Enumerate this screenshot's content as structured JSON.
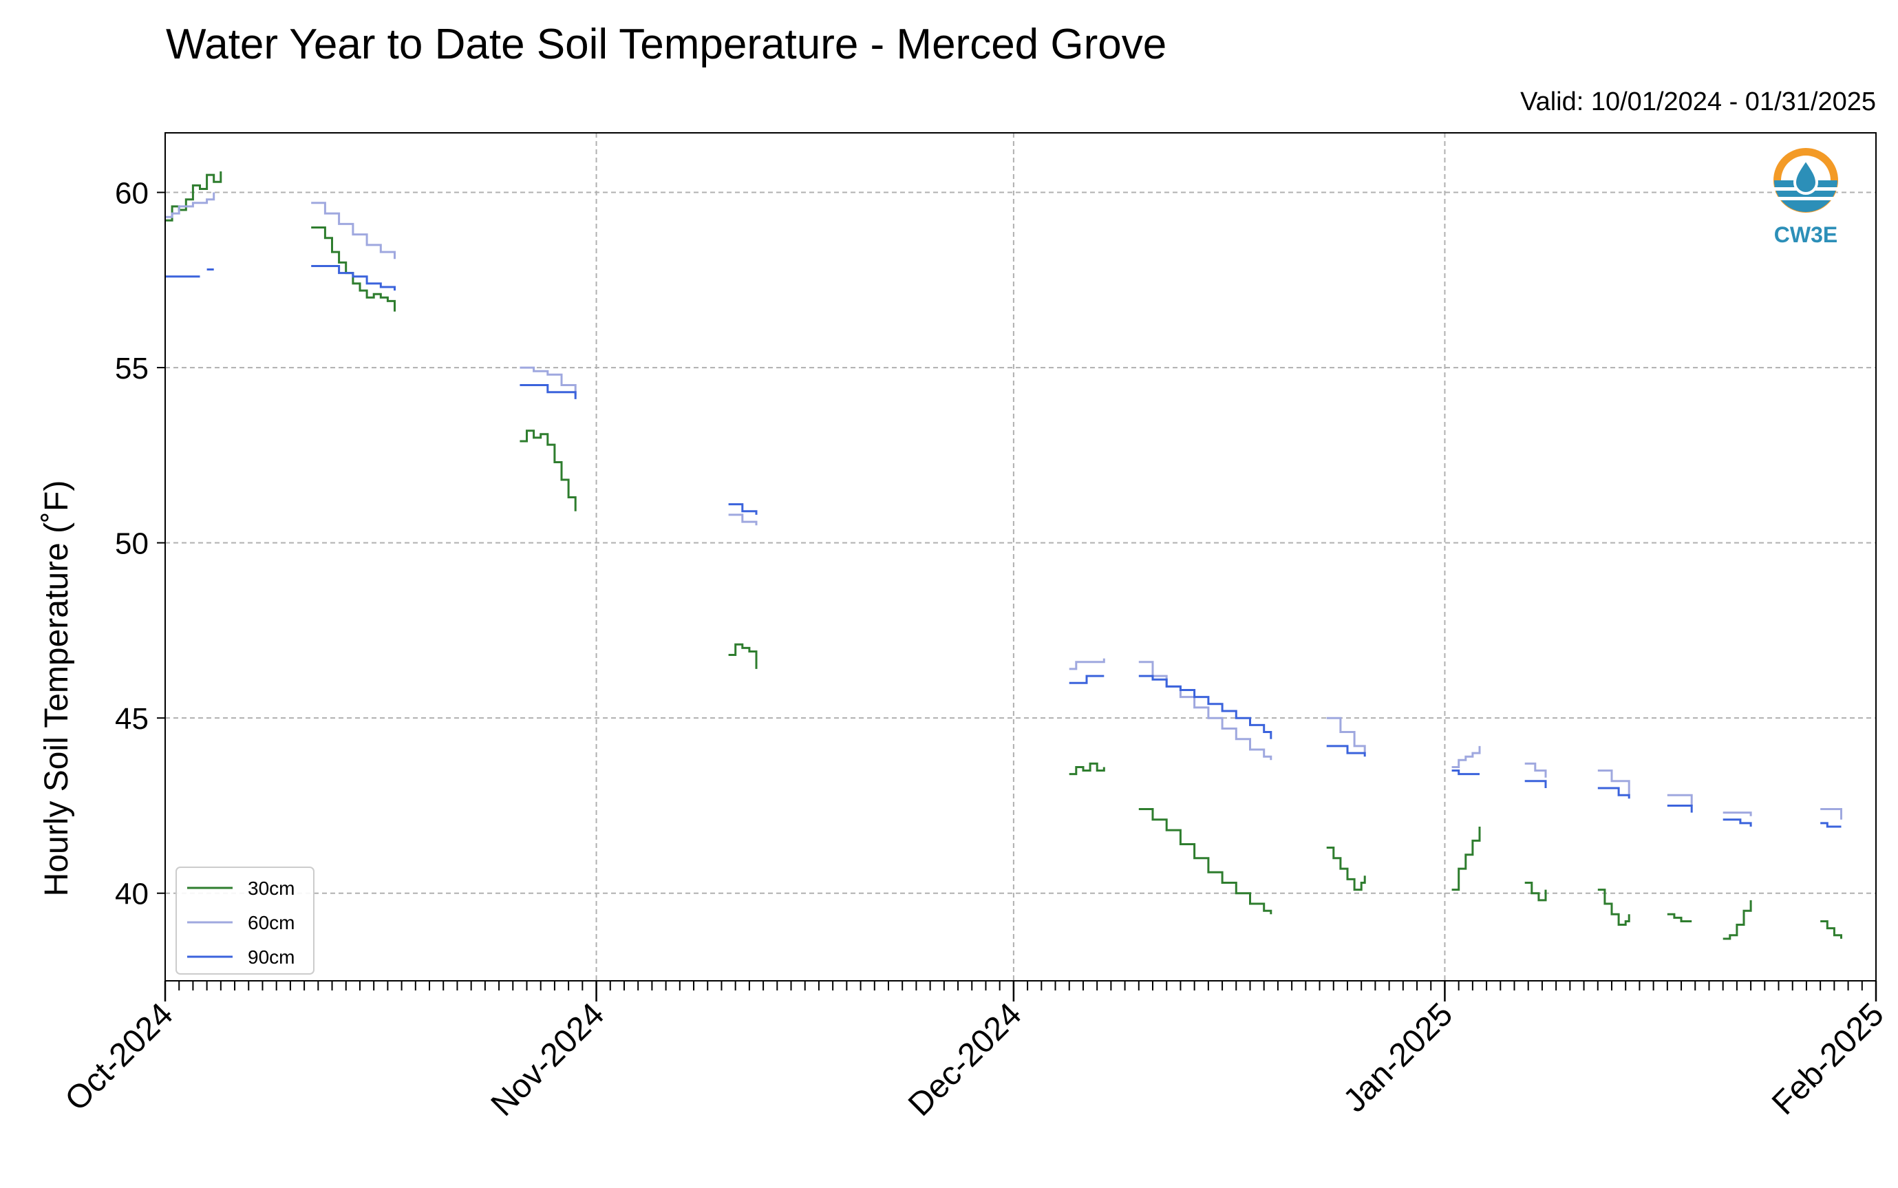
{
  "chart_data": {
    "type": "line",
    "title": "Water Year to Date Soil Temperature - Merced Grove",
    "subtitle": "Valid: 10/01/2024 - 01/31/2025",
    "ylabel": "Hourly Soil Temperature (˚F)",
    "xlabel": "",
    "x_start": "2024-10-01",
    "x_end": "2025-02-01",
    "ylim": [
      37.5,
      61.7
    ],
    "yticks": [
      40,
      45,
      50,
      55,
      60
    ],
    "xticks": [
      {
        "date": "2024-10-01",
        "label": "Oct-2024"
      },
      {
        "date": "2024-11-01",
        "label": "Nov-2024"
      },
      {
        "date": "2024-12-01",
        "label": "Dec-2024"
      },
      {
        "date": "2025-01-01",
        "label": "Jan-2025"
      },
      {
        "date": "2025-02-01",
        "label": "Feb-2025"
      }
    ],
    "grid": true,
    "legend_position": "lower-left",
    "logo_text": "CW3E",
    "series": [
      {
        "name": "30cm",
        "color": "#2e7d2e",
        "segments": [
          [
            [
              "2024-10-01T00",
              59.2
            ],
            [
              "2024-10-01T12",
              59.6
            ],
            [
              "2024-10-02T00",
              59.5
            ],
            [
              "2024-10-02T12",
              59.8
            ],
            [
              "2024-10-03T00",
              60.2
            ],
            [
              "2024-10-03T12",
              60.1
            ],
            [
              "2024-10-04T00",
              60.5
            ],
            [
              "2024-10-04T12",
              60.3
            ],
            [
              "2024-10-05T00",
              60.6
            ]
          ],
          [
            [
              "2024-10-11T12",
              59.0
            ],
            [
              "2024-10-12T12",
              58.7
            ],
            [
              "2024-10-13T00",
              58.3
            ],
            [
              "2024-10-13T12",
              58.0
            ],
            [
              "2024-10-14T00",
              57.7
            ],
            [
              "2024-10-14T12",
              57.4
            ],
            [
              "2024-10-15T00",
              57.2
            ],
            [
              "2024-10-15T12",
              57.0
            ],
            [
              "2024-10-16T00",
              57.1
            ],
            [
              "2024-10-16T12",
              57.0
            ],
            [
              "2024-10-17T00",
              56.9
            ],
            [
              "2024-10-17T12",
              56.6
            ]
          ],
          [
            [
              "2024-10-26T12",
              52.9
            ],
            [
              "2024-10-27T00",
              53.2
            ],
            [
              "2024-10-27T12",
              53.0
            ],
            [
              "2024-10-28T00",
              53.1
            ],
            [
              "2024-10-28T12",
              52.8
            ],
            [
              "2024-10-29T00",
              52.3
            ],
            [
              "2024-10-29T12",
              51.8
            ],
            [
              "2024-10-30T00",
              51.3
            ],
            [
              "2024-10-30T12",
              50.9
            ]
          ],
          [
            [
              "2024-11-10T12",
              46.8
            ],
            [
              "2024-11-11T00",
              47.1
            ],
            [
              "2024-11-11T12",
              47.0
            ],
            [
              "2024-11-12T00",
              46.9
            ],
            [
              "2024-11-12T12",
              46.4
            ]
          ],
          [
            [
              "2024-12-05T00",
              43.4
            ],
            [
              "2024-12-05T12",
              43.6
            ],
            [
              "2024-12-06T00",
              43.5
            ],
            [
              "2024-12-06T12",
              43.7
            ],
            [
              "2024-12-07T00",
              43.5
            ],
            [
              "2024-12-07T12",
              43.6
            ]
          ],
          [
            [
              "2024-12-10T00",
              42.4
            ],
            [
              "2024-12-11T00",
              42.1
            ],
            [
              "2024-12-12T00",
              41.8
            ],
            [
              "2024-12-13T00",
              41.4
            ],
            [
              "2024-12-14T00",
              41.0
            ],
            [
              "2024-12-15T00",
              40.6
            ],
            [
              "2024-12-16T00",
              40.3
            ],
            [
              "2024-12-17T00",
              40.0
            ],
            [
              "2024-12-18T00",
              39.7
            ],
            [
              "2024-12-19T00",
              39.5
            ],
            [
              "2024-12-19T12",
              39.4
            ]
          ],
          [
            [
              "2024-12-23T12",
              41.3
            ],
            [
              "2024-12-24T00",
              41.0
            ],
            [
              "2024-12-24T12",
              40.7
            ],
            [
              "2024-12-25T00",
              40.4
            ],
            [
              "2024-12-25T12",
              40.1
            ],
            [
              "2024-12-26T00",
              40.3
            ],
            [
              "2024-12-26T06",
              40.5
            ]
          ],
          [
            [
              "2025-01-01T12",
              40.1
            ],
            [
              "2025-01-02T00",
              40.7
            ],
            [
              "2025-01-02T12",
              41.1
            ],
            [
              "2025-01-03T00",
              41.5
            ],
            [
              "2025-01-03T12",
              41.9
            ]
          ],
          [
            [
              "2025-01-06T18",
              40.3
            ],
            [
              "2025-01-07T06",
              40.0
            ],
            [
              "2025-01-07T18",
              39.8
            ],
            [
              "2025-01-08T06",
              40.1
            ]
          ],
          [
            [
              "2025-01-12T00",
              40.1
            ],
            [
              "2025-01-12T12",
              39.7
            ],
            [
              "2025-01-13T00",
              39.4
            ],
            [
              "2025-01-13T12",
              39.1
            ],
            [
              "2025-01-14T00",
              39.2
            ],
            [
              "2025-01-14T06",
              39.4
            ]
          ],
          [
            [
              "2025-01-17T00",
              39.4
            ],
            [
              "2025-01-17T12",
              39.3
            ],
            [
              "2025-01-18T00",
              39.2
            ],
            [
              "2025-01-18T18",
              39.2
            ]
          ],
          [
            [
              "2025-01-21T00",
              38.7
            ],
            [
              "2025-01-21T12",
              38.8
            ],
            [
              "2025-01-22T00",
              39.1
            ],
            [
              "2025-01-22T12",
              39.5
            ],
            [
              "2025-01-23T00",
              39.8
            ]
          ],
          [
            [
              "2025-01-28T00",
              39.2
            ],
            [
              "2025-01-28T12",
              39.0
            ],
            [
              "2025-01-29T00",
              38.8
            ],
            [
              "2025-01-29T12",
              38.7
            ]
          ]
        ]
      },
      {
        "name": "60cm",
        "color": "#9fa8df",
        "segments": [
          [
            [
              "2024-10-01T00",
              59.3
            ],
            [
              "2024-10-01T12",
              59.4
            ],
            [
              "2024-10-02T00",
              59.6
            ],
            [
              "2024-10-03T00",
              59.7
            ],
            [
              "2024-10-04T00",
              59.8
            ],
            [
              "2024-10-04T12",
              60.0
            ]
          ],
          [
            [
              "2024-10-11T12",
              59.7
            ],
            [
              "2024-10-12T12",
              59.4
            ],
            [
              "2024-10-13T12",
              59.1
            ],
            [
              "2024-10-14T12",
              58.8
            ],
            [
              "2024-10-15T12",
              58.5
            ],
            [
              "2024-10-16T12",
              58.3
            ],
            [
              "2024-10-17T12",
              58.1
            ]
          ],
          [
            [
              "2024-10-26T12",
              55.0
            ],
            [
              "2024-10-27T12",
              54.9
            ],
            [
              "2024-10-28T12",
              54.8
            ],
            [
              "2024-10-29T12",
              54.5
            ],
            [
              "2024-10-30T12",
              54.2
            ]
          ],
          [
            [
              "2024-11-10T12",
              50.8
            ],
            [
              "2024-11-11T12",
              50.6
            ],
            [
              "2024-11-12T12",
              50.5
            ]
          ],
          [
            [
              "2024-12-05T00",
              46.4
            ],
            [
              "2024-12-05T12",
              46.6
            ],
            [
              "2024-12-06T12",
              46.6
            ],
            [
              "2024-12-07T12",
              46.7
            ]
          ],
          [
            [
              "2024-12-10T00",
              46.6
            ],
            [
              "2024-12-11T00",
              46.2
            ],
            [
              "2024-12-12T00",
              45.9
            ],
            [
              "2024-12-13T00",
              45.6
            ],
            [
              "2024-12-14T00",
              45.3
            ],
            [
              "2024-12-15T00",
              45.0
            ],
            [
              "2024-12-16T00",
              44.7
            ],
            [
              "2024-12-17T00",
              44.4
            ],
            [
              "2024-12-18T00",
              44.1
            ],
            [
              "2024-12-19T00",
              43.9
            ],
            [
              "2024-12-19T12",
              43.8
            ]
          ],
          [
            [
              "2024-12-23T12",
              45.0
            ],
            [
              "2024-12-24T12",
              44.6
            ],
            [
              "2024-12-25T12",
              44.2
            ],
            [
              "2024-12-26T06",
              44.0
            ]
          ],
          [
            [
              "2025-01-01T12",
              43.6
            ],
            [
              "2025-01-02T00",
              43.8
            ],
            [
              "2025-01-02T12",
              43.9
            ],
            [
              "2025-01-03T00",
              44.0
            ],
            [
              "2025-01-03T12",
              44.2
            ]
          ],
          [
            [
              "2025-01-06T18",
              43.7
            ],
            [
              "2025-01-07T12",
              43.5
            ],
            [
              "2025-01-08T06",
              43.3
            ]
          ],
          [
            [
              "2025-01-12T00",
              43.5
            ],
            [
              "2025-01-13T00",
              43.2
            ],
            [
              "2025-01-14T06",
              42.8
            ]
          ],
          [
            [
              "2025-01-17T00",
              42.8
            ],
            [
              "2025-01-18T18",
              42.5
            ]
          ],
          [
            [
              "2025-01-21T00",
              42.3
            ],
            [
              "2025-01-23T00",
              42.2
            ]
          ],
          [
            [
              "2025-01-28T00",
              42.4
            ],
            [
              "2025-01-29T12",
              42.1
            ]
          ]
        ]
      },
      {
        "name": "90cm",
        "color": "#3b63dc",
        "segments": [
          [
            [
              "2024-10-01T00",
              57.6
            ],
            [
              "2024-10-03T12",
              57.6
            ]
          ],
          [
            [
              "2024-10-04T00",
              57.8
            ],
            [
              "2024-10-04T12",
              57.8
            ]
          ],
          [
            [
              "2024-10-11T12",
              57.9
            ],
            [
              "2024-10-13T00",
              57.9
            ],
            [
              "2024-10-13T12",
              57.7
            ],
            [
              "2024-10-14T12",
              57.6
            ],
            [
              "2024-10-15T12",
              57.4
            ],
            [
              "2024-10-16T12",
              57.3
            ],
            [
              "2024-10-17T12",
              57.2
            ]
          ],
          [
            [
              "2024-10-26T12",
              54.5
            ],
            [
              "2024-10-28T00",
              54.5
            ],
            [
              "2024-10-28T12",
              54.3
            ],
            [
              "2024-10-30T00",
              54.3
            ],
            [
              "2024-10-30T12",
              54.1
            ]
          ],
          [
            [
              "2024-11-10T12",
              51.1
            ],
            [
              "2024-11-11T12",
              50.9
            ],
            [
              "2024-11-12T12",
              50.8
            ]
          ],
          [
            [
              "2024-12-05T00",
              46.0
            ],
            [
              "2024-12-06T00",
              46.0
            ],
            [
              "2024-12-06T06",
              46.2
            ],
            [
              "2024-12-07T12",
              46.2
            ]
          ],
          [
            [
              "2024-12-10T00",
              46.2
            ],
            [
              "2024-12-11T00",
              46.1
            ],
            [
              "2024-12-12T00",
              45.9
            ],
            [
              "2024-12-13T00",
              45.8
            ],
            [
              "2024-12-14T00",
              45.6
            ],
            [
              "2024-12-15T00",
              45.4
            ],
            [
              "2024-12-16T00",
              45.2
            ],
            [
              "2024-12-17T00",
              45.0
            ],
            [
              "2024-12-18T00",
              44.8
            ],
            [
              "2024-12-19T00",
              44.6
            ],
            [
              "2024-12-19T12",
              44.4
            ]
          ],
          [
            [
              "2024-12-23T12",
              44.2
            ],
            [
              "2024-12-24T12",
              44.2
            ],
            [
              "2024-12-25T00",
              44.0
            ],
            [
              "2024-12-26T06",
              43.9
            ]
          ],
          [
            [
              "2025-01-01T12",
              43.5
            ],
            [
              "2025-01-02T00",
              43.4
            ],
            [
              "2025-01-03T12",
              43.4
            ]
          ],
          [
            [
              "2025-01-06T18",
              43.2
            ],
            [
              "2025-01-08T06",
              43.0
            ]
          ],
          [
            [
              "2025-01-12T00",
              43.0
            ],
            [
              "2025-01-13T12",
              42.8
            ],
            [
              "2025-01-14T06",
              42.7
            ]
          ],
          [
            [
              "2025-01-17T00",
              42.5
            ],
            [
              "2025-01-18T18",
              42.3
            ]
          ],
          [
            [
              "2025-01-21T00",
              42.1
            ],
            [
              "2025-01-22T06",
              42.0
            ],
            [
              "2025-01-23T00",
              41.9
            ]
          ],
          [
            [
              "2025-01-28T00",
              42.0
            ],
            [
              "2025-01-28T12",
              41.9
            ],
            [
              "2025-01-29T12",
              41.9
            ]
          ]
        ]
      }
    ]
  }
}
